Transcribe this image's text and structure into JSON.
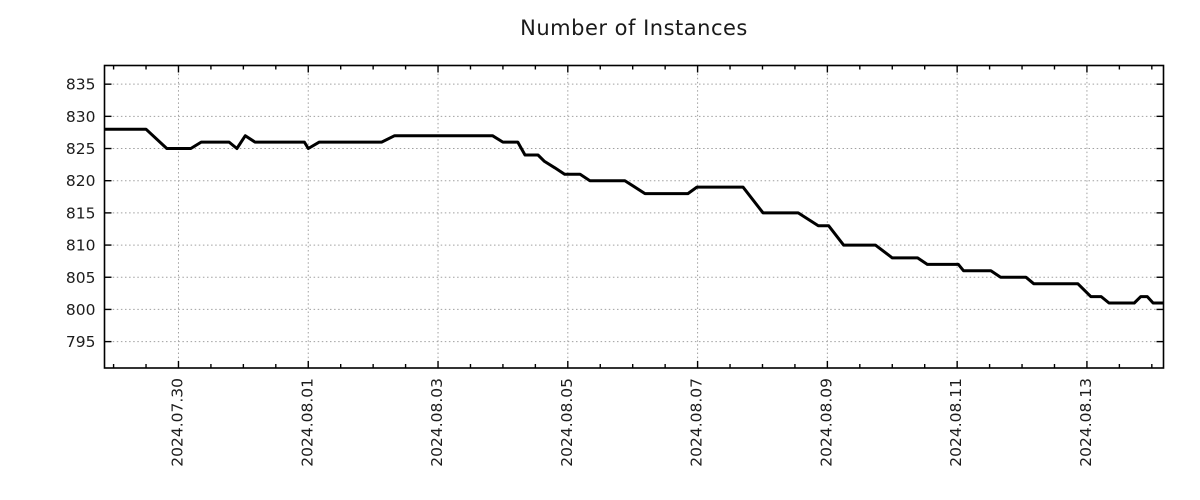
{
  "page": {
    "background": "#ffffff"
  },
  "colors": {
    "line": "#000000",
    "grid": "#a0a0a0",
    "axis": "#000000",
    "text": "#1c1c1c"
  },
  "chart_data": {
    "type": "line",
    "title": "Number of Instances",
    "grid": true,
    "legend": false,
    "x_axis": {
      "label": "",
      "time_origin": "2024.07.28 00:00",
      "range_days": [
        0.86,
        17.18
      ],
      "minor_tick_interval_days": 0.5,
      "major_ticks": [
        {
          "d": 2,
          "label": "2024.07.30"
        },
        {
          "d": 4,
          "label": "2024.08.01"
        },
        {
          "d": 6,
          "label": "2024.08.03"
        },
        {
          "d": 8,
          "label": "2024.08.05"
        },
        {
          "d": 10,
          "label": "2024.08.07"
        },
        {
          "d": 12,
          "label": "2024.08.09"
        },
        {
          "d": 14,
          "label": "2024.08.11"
        },
        {
          "d": 16,
          "label": "2024.08.13"
        }
      ]
    },
    "y_axis": {
      "label": "",
      "range": [
        790.9,
        837.9
      ],
      "tick_values": [
        795,
        800,
        805,
        810,
        815,
        820,
        825,
        830,
        835
      ]
    },
    "series": [
      {
        "name": "Number of Instances",
        "color": "#000000",
        "points": [
          {
            "t": "07.28 20:30",
            "d": 0.86,
            "v": 828
          },
          {
            "t": "07.29 12:00",
            "d": 1.5,
            "v": 828
          },
          {
            "t": "07.29 19:40",
            "d": 1.82,
            "v": 825
          },
          {
            "t": "07.30 04:30",
            "d": 2.19,
            "v": 825
          },
          {
            "t": "07.30 08:20",
            "d": 2.35,
            "v": 826
          },
          {
            "t": "07.30 15:50",
            "d": 2.66,
            "v": 826
          },
          {
            "t": "07.30 18:40",
            "d": 2.78,
            "v": 826
          },
          {
            "t": "07.30 21:30",
            "d": 2.9,
            "v": 825
          },
          {
            "t": "07.31 00:45",
            "d": 3.03,
            "v": 827
          },
          {
            "t": "07.31 04:20",
            "d": 3.18,
            "v": 826
          },
          {
            "t": "07.31 22:35",
            "d": 3.94,
            "v": 826
          },
          {
            "t": "08.01 00:00",
            "d": 4.0,
            "v": 825
          },
          {
            "t": "08.01 04:05",
            "d": 4.17,
            "v": 826
          },
          {
            "t": "08.02 03:05",
            "d": 5.13,
            "v": 826
          },
          {
            "t": "08.02 07:55",
            "d": 5.33,
            "v": 827
          },
          {
            "t": "08.03 20:10",
            "d": 6.84,
            "v": 827
          },
          {
            "t": "08.04 00:00",
            "d": 7.0,
            "v": 826
          },
          {
            "t": "08.04 05:30",
            "d": 7.23,
            "v": 826
          },
          {
            "t": "08.04 08:10",
            "d": 7.34,
            "v": 824
          },
          {
            "t": "08.04 13:00",
            "d": 7.54,
            "v": 824
          },
          {
            "t": "08.04 15:20",
            "d": 7.64,
            "v": 823
          },
          {
            "t": "08.04 19:10",
            "d": 7.8,
            "v": 822
          },
          {
            "t": "08.04 22:50",
            "d": 7.95,
            "v": 821
          },
          {
            "t": "08.05 04:35",
            "d": 8.19,
            "v": 821
          },
          {
            "t": "08.05 08:10",
            "d": 8.34,
            "v": 820
          },
          {
            "t": "08.05 21:05",
            "d": 8.88,
            "v": 820
          },
          {
            "t": "08.06 04:35",
            "d": 9.19,
            "v": 818
          },
          {
            "t": "08.06 20:25",
            "d": 9.85,
            "v": 818
          },
          {
            "t": "08.06 23:50",
            "d": 9.99,
            "v": 819
          },
          {
            "t": "08.07 16:50",
            "d": 10.7,
            "v": 819
          },
          {
            "t": "08.08 00:15",
            "d": 11.01,
            "v": 815
          },
          {
            "t": "08.08 13:10",
            "d": 11.55,
            "v": 815
          },
          {
            "t": "08.08 20:40",
            "d": 11.86,
            "v": 813
          },
          {
            "t": "08.09 00:30",
            "d": 12.02,
            "v": 813
          },
          {
            "t": "08.09 06:00",
            "d": 12.25,
            "v": 810
          },
          {
            "t": "08.09 17:45",
            "d": 12.74,
            "v": 810
          },
          {
            "t": "08.10 00:00",
            "d": 13.0,
            "v": 808
          },
          {
            "t": "08.10 09:20",
            "d": 13.39,
            "v": 808
          },
          {
            "t": "08.10 13:00",
            "d": 13.54,
            "v": 807
          },
          {
            "t": "08.11 00:30",
            "d": 14.02,
            "v": 807
          },
          {
            "t": "08.11 02:25",
            "d": 14.1,
            "v": 806
          },
          {
            "t": "08.11 12:30",
            "d": 14.52,
            "v": 806
          },
          {
            "t": "08.11 16:05",
            "d": 14.67,
            "v": 805
          },
          {
            "t": "08.12 01:25",
            "d": 15.06,
            "v": 805
          },
          {
            "t": "08.12 04:20",
            "d": 15.18,
            "v": 804
          },
          {
            "t": "08.12 20:40",
            "d": 15.86,
            "v": 804
          },
          {
            "t": "08.13 01:25",
            "d": 16.06,
            "v": 802
          },
          {
            "t": "08.13 05:15",
            "d": 16.22,
            "v": 802
          },
          {
            "t": "08.13 08:10",
            "d": 16.34,
            "v": 801
          },
          {
            "t": "08.13 17:30",
            "d": 16.73,
            "v": 801
          },
          {
            "t": "08.13 19:55",
            "d": 16.83,
            "v": 802
          },
          {
            "t": "08.13 22:20",
            "d": 16.93,
            "v": 802
          },
          {
            "t": "08.14 00:30",
            "d": 17.02,
            "v": 801
          },
          {
            "t": "08.14 04:20",
            "d": 17.18,
            "v": 801
          }
        ]
      }
    ]
  }
}
